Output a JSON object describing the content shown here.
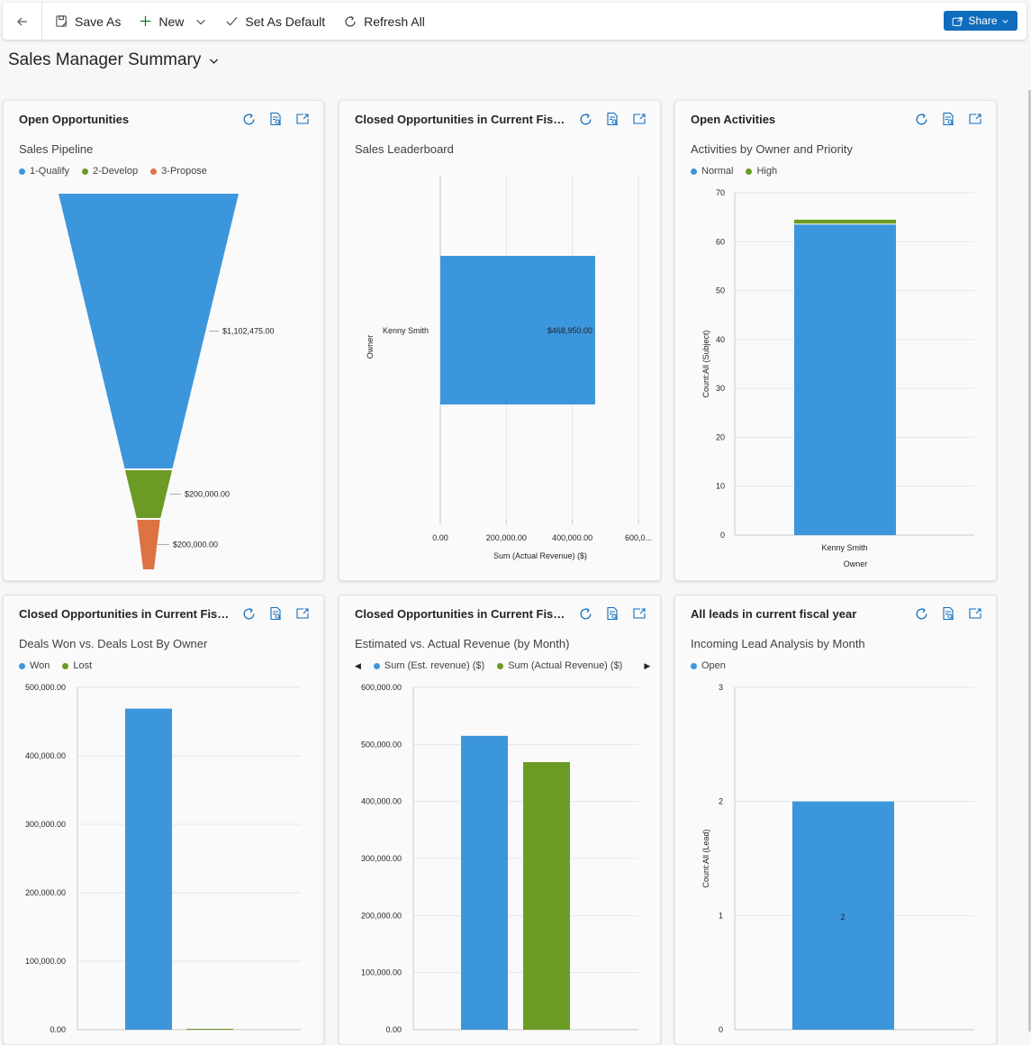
{
  "commandbar": {
    "save_as": "Save As",
    "new": "New",
    "set_default": "Set As Default",
    "refresh_all": "Refresh All",
    "share": "Share"
  },
  "page": {
    "title": "Sales Manager Summary"
  },
  "colors": {
    "blue": "#3c96dc",
    "green": "#6b9b24",
    "orange": "#dd7343",
    "accent": "#0f6cbd"
  },
  "cards": [
    {
      "title": "Open Opportunities",
      "chart_name": "Sales Pipeline",
      "legend": [
        "1-Qualify",
        "2-Develop",
        "3-Propose"
      ]
    },
    {
      "title": "Closed Opportunities in Current Fiscal...",
      "chart_name": "Sales Leaderboard",
      "legend": []
    },
    {
      "title": "Open Activities",
      "chart_name": "Activities by Owner and Priority",
      "legend": [
        "Normal",
        "High"
      ]
    },
    {
      "title": "Closed Opportunities in Current Fiscal...",
      "chart_name": "Deals Won vs. Deals Lost By Owner",
      "legend": [
        "Won",
        "Lost"
      ]
    },
    {
      "title": "Closed Opportunities in Current Fiscal...",
      "chart_name": "Estimated vs. Actual Revenue (by Month)",
      "legend": [
        "Sum (Est. revenue) ($)",
        "Sum (Actual Revenue) ($)"
      ]
    },
    {
      "title": "All leads in current fiscal year",
      "chart_name": "Incoming Lead Analysis by Month",
      "legend": [
        "Open"
      ]
    }
  ],
  "chart_data": [
    {
      "type": "funnel",
      "title": "Sales Pipeline",
      "categories": [
        "1-Qualify",
        "2-Develop",
        "3-Propose"
      ],
      "values": [
        1102475,
        200000,
        200000
      ],
      "labels": [
        "$1,102,475.00",
        "$200,000.00",
        "$200,000.00"
      ]
    },
    {
      "type": "bar",
      "orientation": "horizontal",
      "title": "Sales Leaderboard",
      "categories": [
        "Kenny Smith"
      ],
      "values": [
        468950
      ],
      "labels": [
        "$468,950.00"
      ],
      "xlabel": "Sum (Actual Revenue) ($)",
      "ylabel": "Owner",
      "xticks": [
        "0.00",
        "200,000.00",
        "400,000.00",
        "600,0..."
      ],
      "xlim": [
        0,
        600000
      ]
    },
    {
      "type": "bar",
      "stacked": true,
      "title": "Activities by Owner and Priority",
      "categories": [
        "Kenny Smith"
      ],
      "series": [
        {
          "name": "Normal",
          "values": [
            63.5
          ]
        },
        {
          "name": "High",
          "values": [
            1
          ]
        }
      ],
      "xlabel": "Owner",
      "ylabel": "Count:All (Subject)",
      "yticks": [
        "0",
        "10",
        "20",
        "30",
        "40",
        "50",
        "60",
        "70"
      ],
      "ylim": [
        0,
        70
      ]
    },
    {
      "type": "bar",
      "title": "Deals Won vs. Deals Lost By Owner",
      "series": [
        {
          "name": "Won",
          "values": [
            468950
          ]
        },
        {
          "name": "Lost",
          "values": [
            0
          ]
        }
      ],
      "yticks": [
        "0.00",
        "100,000.00",
        "200,000.00",
        "300,000.00",
        "400,000.00",
        "500,000.00"
      ],
      "ylim": [
        0,
        500000
      ]
    },
    {
      "type": "bar",
      "title": "Estimated vs. Actual Revenue (by Month)",
      "series": [
        {
          "name": "Sum (Est. revenue) ($)",
          "values": [
            515000
          ]
        },
        {
          "name": "Sum (Actual Revenue) ($)",
          "values": [
            468950
          ]
        }
      ],
      "yticks": [
        "0.00",
        "100,000.00",
        "200,000.00",
        "300,000.00",
        "400,000.00",
        "500,000.00",
        "600,000.00"
      ],
      "ylim": [
        0,
        600000
      ]
    },
    {
      "type": "bar",
      "title": "Incoming Lead Analysis by Month",
      "series": [
        {
          "name": "Open",
          "values": [
            2
          ]
        }
      ],
      "labels": [
        "2"
      ],
      "ylabel": "Count:All (Lead)",
      "yticks": [
        "0",
        "1",
        "2",
        "3"
      ],
      "ylim": [
        0,
        3
      ]
    }
  ]
}
